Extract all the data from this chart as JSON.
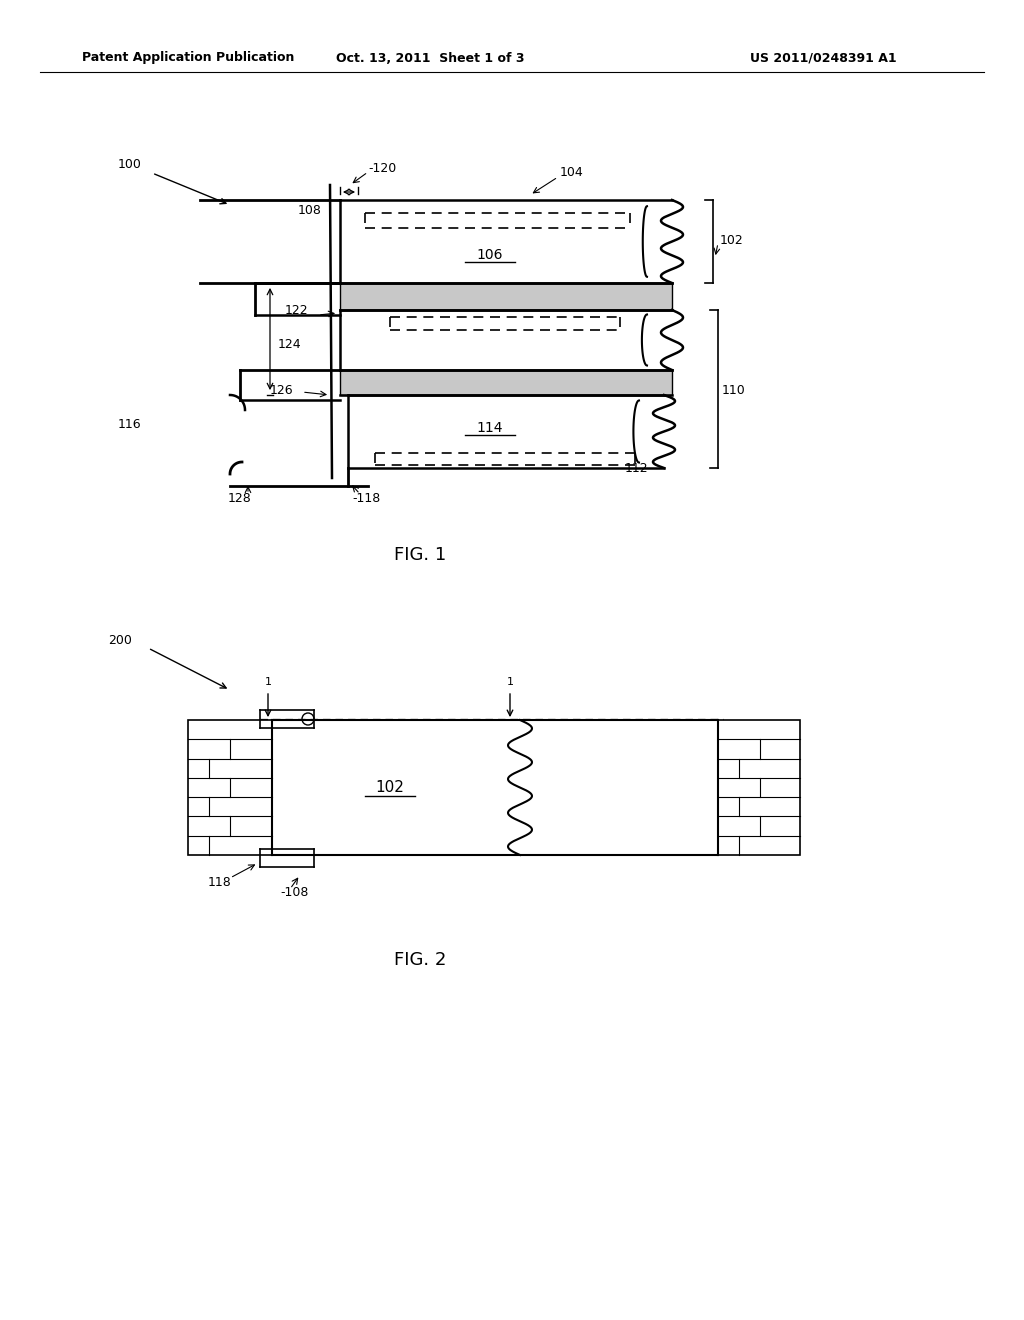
{
  "header_left": "Patent Application Publication",
  "header_center": "Oct. 13, 2011  Sheet 1 of 3",
  "header_right": "US 2011/0248391 A1",
  "fig1_label": "FIG. 1",
  "fig2_label": "FIG. 2",
  "bg_color": "#ffffff"
}
